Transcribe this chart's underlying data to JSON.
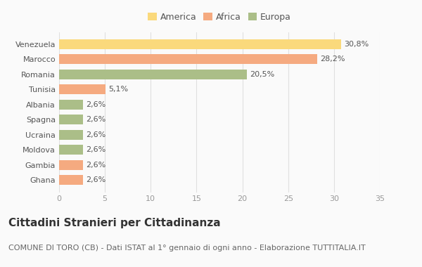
{
  "categories": [
    "Ghana",
    "Gambia",
    "Moldova",
    "Ucraina",
    "Spagna",
    "Albania",
    "Tunisia",
    "Romania",
    "Marocco",
    "Venezuela"
  ],
  "values": [
    2.6,
    2.6,
    2.6,
    2.6,
    2.6,
    2.6,
    5.1,
    20.5,
    28.2,
    30.8
  ],
  "colors": [
    "#F5AA80",
    "#F5AA80",
    "#ABBE88",
    "#ABBE88",
    "#ABBE88",
    "#ABBE88",
    "#F5AA80",
    "#ABBE88",
    "#F5AA80",
    "#FAD97C"
  ],
  "labels": [
    "2,6%",
    "2,6%",
    "2,6%",
    "2,6%",
    "2,6%",
    "2,6%",
    "5,1%",
    "20,5%",
    "28,2%",
    "30,8%"
  ],
  "legend": [
    {
      "label": "America",
      "color": "#FAD97C"
    },
    {
      "label": "Africa",
      "color": "#F5AA80"
    },
    {
      "label": "Europa",
      "color": "#ABBE88"
    }
  ],
  "xlim": [
    0,
    35
  ],
  "xticks": [
    0,
    5,
    10,
    15,
    20,
    25,
    30,
    35
  ],
  "title": "Cittadini Stranieri per Cittadinanza",
  "subtitle": "COMUNE DI TORO (CB) - Dati ISTAT al 1° gennaio di ogni anno - Elaborazione TUTTITALIA.IT",
  "background_color": "#FAFAFA",
  "grid_color": "#E0E0E0",
  "bar_height": 0.65,
  "title_fontsize": 11,
  "subtitle_fontsize": 8,
  "label_fontsize": 8,
  "tick_fontsize": 8
}
